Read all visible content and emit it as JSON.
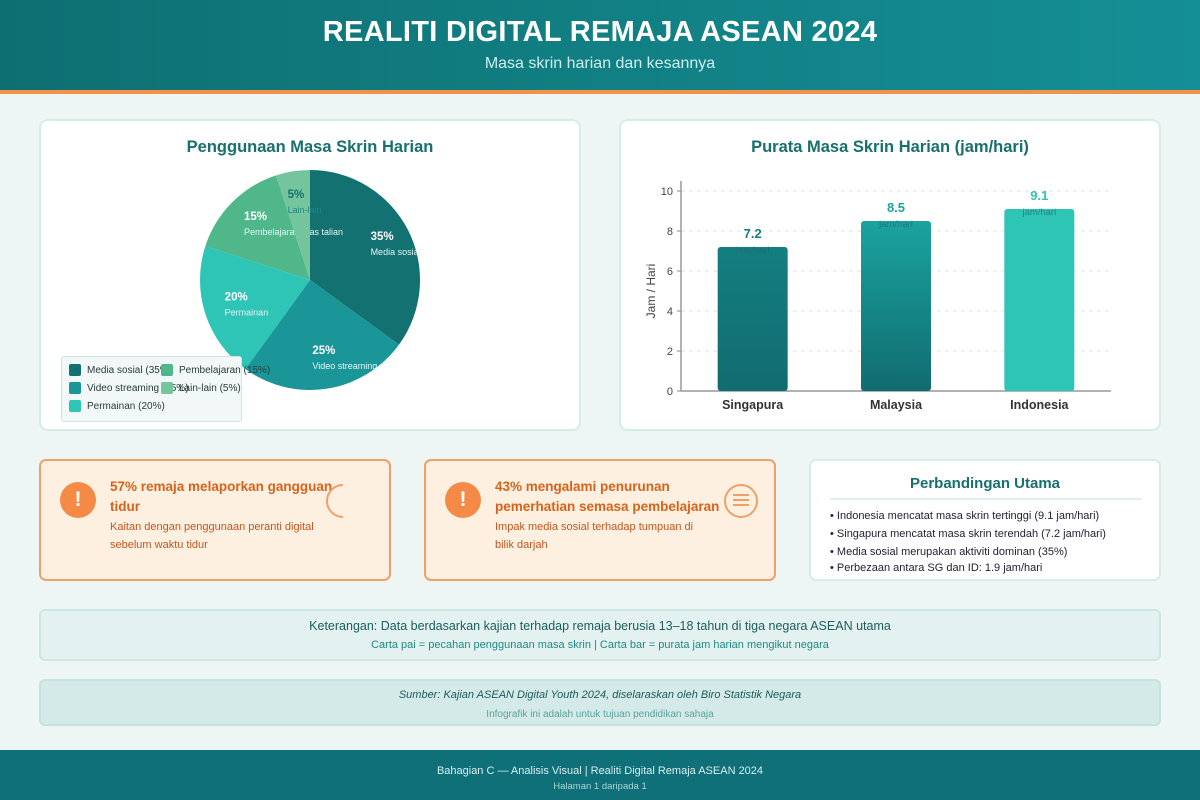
{
  "header": {
    "title": "REALITI DIGITAL REMAJA ASEAN 2024",
    "subtitle": "Masa skrin harian dan kesannya"
  },
  "colors": {
    "header_start": "#0e6f72",
    "header_end": "#148f95",
    "accent_orange": "#f39149",
    "teal_dark": "#137172",
    "teal_mid": "#1a9598",
    "teal_light": "#2ec4b6",
    "green": "#4fb78a",
    "green_light": "#74c49d"
  },
  "chart_data": [
    {
      "type": "pie",
      "title": "Penggunaan Masa Skrin Harian",
      "slices": [
        {
          "label": "Media sosial",
          "short": "Media sosial",
          "value": 35,
          "pct_label": "35%",
          "color": "#137172",
          "legend": "Media sosial (35%)"
        },
        {
          "label": "Video streaming",
          "short": "Video streaming",
          "value": 25,
          "pct_label": "25%",
          "color": "#1a9598",
          "legend": "Video streaming (25%)"
        },
        {
          "label": "Permainan",
          "short": "Permainan",
          "value": 20,
          "pct_label": "20%",
          "color": "#2ec4b6",
          "legend": "Permainan (20%)"
        },
        {
          "label": "Pembelajaran atas talian",
          "short": "Pembelajaran atas talian",
          "value": 15,
          "pct_label": "15%",
          "color": "#4fb78a",
          "legend": "Pembelajaran (15%)"
        },
        {
          "label": "Lain-lain",
          "short": "Lain-lain",
          "value": 5,
          "pct_label": "5%",
          "color": "#74c49d",
          "legend": "Lain-lain (5%)"
        }
      ],
      "legend_position": "bottom-left"
    },
    {
      "type": "bar",
      "title": "Purata Masa Skrin Harian (jam/hari)",
      "categories": [
        "Singapura",
        "Malaysia",
        "Indonesia"
      ],
      "values": [
        7.2,
        8.5,
        9.1
      ],
      "value_labels": [
        "7.2",
        "8.5",
        "9.1"
      ],
      "unit_label": "jam/hari",
      "colors": [
        "#147e80",
        "#1aa3a0",
        "#2ec4b6"
      ],
      "ylabel": "Jam / Hari",
      "ylim": [
        0,
        10
      ],
      "yticks": [
        0,
        2,
        4,
        6,
        8,
        10
      ],
      "grid": true
    }
  ],
  "alerts": [
    {
      "headline": "57% remaja melaporkan gangguan tidur",
      "text": "Kaitan dengan penggunaan peranti digital sebelum waktu tidur",
      "icon": "exclamation-icon",
      "deco_icon": "moon-icon"
    },
    {
      "headline": "43% mengalami penurunan pemerhatian semasa pembelajaran",
      "text": "Impak media sosial terhadap tumpuan di bilik darjah",
      "icon": "exclamation-icon",
      "deco_icon": "menu-lines-icon"
    }
  ],
  "comparison": {
    "title": "Perbandingan Utama",
    "items": [
      "• Indonesia mencatat masa skrin tertinggi (9.1 jam/hari)",
      "• Singapura mencatat masa skrin terendah (7.2 jam/hari)",
      "• Media sosial merupakan aktiviti dominan (35%)",
      "• Perbezaan antara SG dan ID: 1.9 jam/hari"
    ]
  },
  "note": {
    "line1": "Keterangan: Data berdasarkan kajian terhadap remaja berusia 13–18 tahun di tiga negara ASEAN utama",
    "line2": "Carta pai = pecahan penggunaan masa skrin | Carta bar = purata jam harian mengikut negara"
  },
  "source": {
    "line1": "Sumber: Kajian ASEAN Digital Youth 2024, diselaraskan oleh Biro Statistik Negara",
    "line2": "Infografik ini adalah untuk tujuan pendidikan sahaja"
  },
  "footer": {
    "line1": "Bahagian C — Analisis Visual | Realiti Digital Remaja ASEAN 2024",
    "line2": "Halaman 1 daripada 1"
  }
}
